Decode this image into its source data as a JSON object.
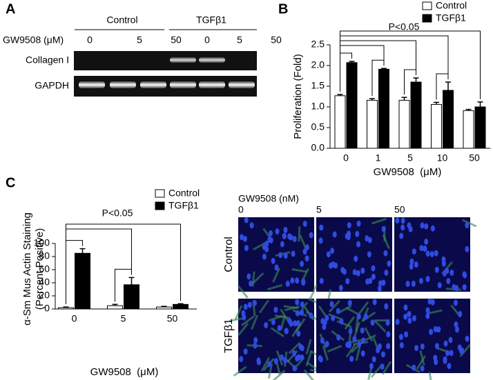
{
  "panel_labels": [
    "A",
    "B",
    "C"
  ],
  "blot": {
    "groups": [
      "Control",
      "TGFβ1"
    ],
    "treatment_label": "GW9508 (μM)",
    "doses": [
      "0",
      "5",
      "50",
      "0",
      "5",
      "50"
    ],
    "rows": [
      "Collagen I",
      "GAPDH"
    ]
  },
  "chart_data": [
    {
      "type": "bar",
      "y_label": [
        "Proliferation (Fold)"
      ],
      "x_label": "GW9508  (μM)",
      "annotation": "P<0.05",
      "categories": [
        "0",
        "1",
        "5",
        "10",
        "50"
      ],
      "series": [
        {
          "name": "Control",
          "color": "#ffffff",
          "values": [
            1.27,
            1.16,
            1.16,
            1.06,
            0.91
          ],
          "errors": [
            0.03,
            0.04,
            0.07,
            0.05,
            0.03
          ]
        },
        {
          "name": "TGFβ1",
          "color": "#000000",
          "values": [
            2.07,
            1.91,
            1.6,
            1.4,
            1.0
          ],
          "errors": [
            0.03,
            0.02,
            0.1,
            0.2,
            0.12
          ]
        }
      ],
      "ylim": [
        0,
        2.5
      ],
      "yticks": [
        {
          "value": 0,
          "label": "0.0"
        },
        0.5,
        {
          "value": 1,
          "label": "1.0"
        },
        1.5,
        {
          "value": 2,
          "label": "2.0"
        },
        2.5
      ]
    },
    {
      "type": "bar",
      "y_label": [
        "α-Sm Mus Actin Staining",
        "(Percent Positive)"
      ],
      "x_label": "GW9508  (μM)",
      "annotation": "P<0.05",
      "categories": [
        "0",
        "5",
        "50"
      ],
      "series": [
        {
          "name": "Control",
          "color": "#ffffff",
          "values": [
            2,
            5,
            3
          ],
          "errors": [
            1,
            2,
            1
          ]
        },
        {
          "name": "TGFβ1",
          "color": "#000000",
          "values": [
            85,
            37,
            7
          ],
          "errors": [
            7,
            11,
            1
          ]
        }
      ],
      "ylim": [
        0,
        100
      ],
      "yticks": [
        0,
        20,
        40,
        60,
        80,
        100
      ]
    }
  ],
  "micrographs": {
    "title": "GW9508 (nM)",
    "columns": [
      "0",
      "5",
      "50"
    ],
    "rows": [
      "Control",
      "TGFβ1"
    ]
  }
}
